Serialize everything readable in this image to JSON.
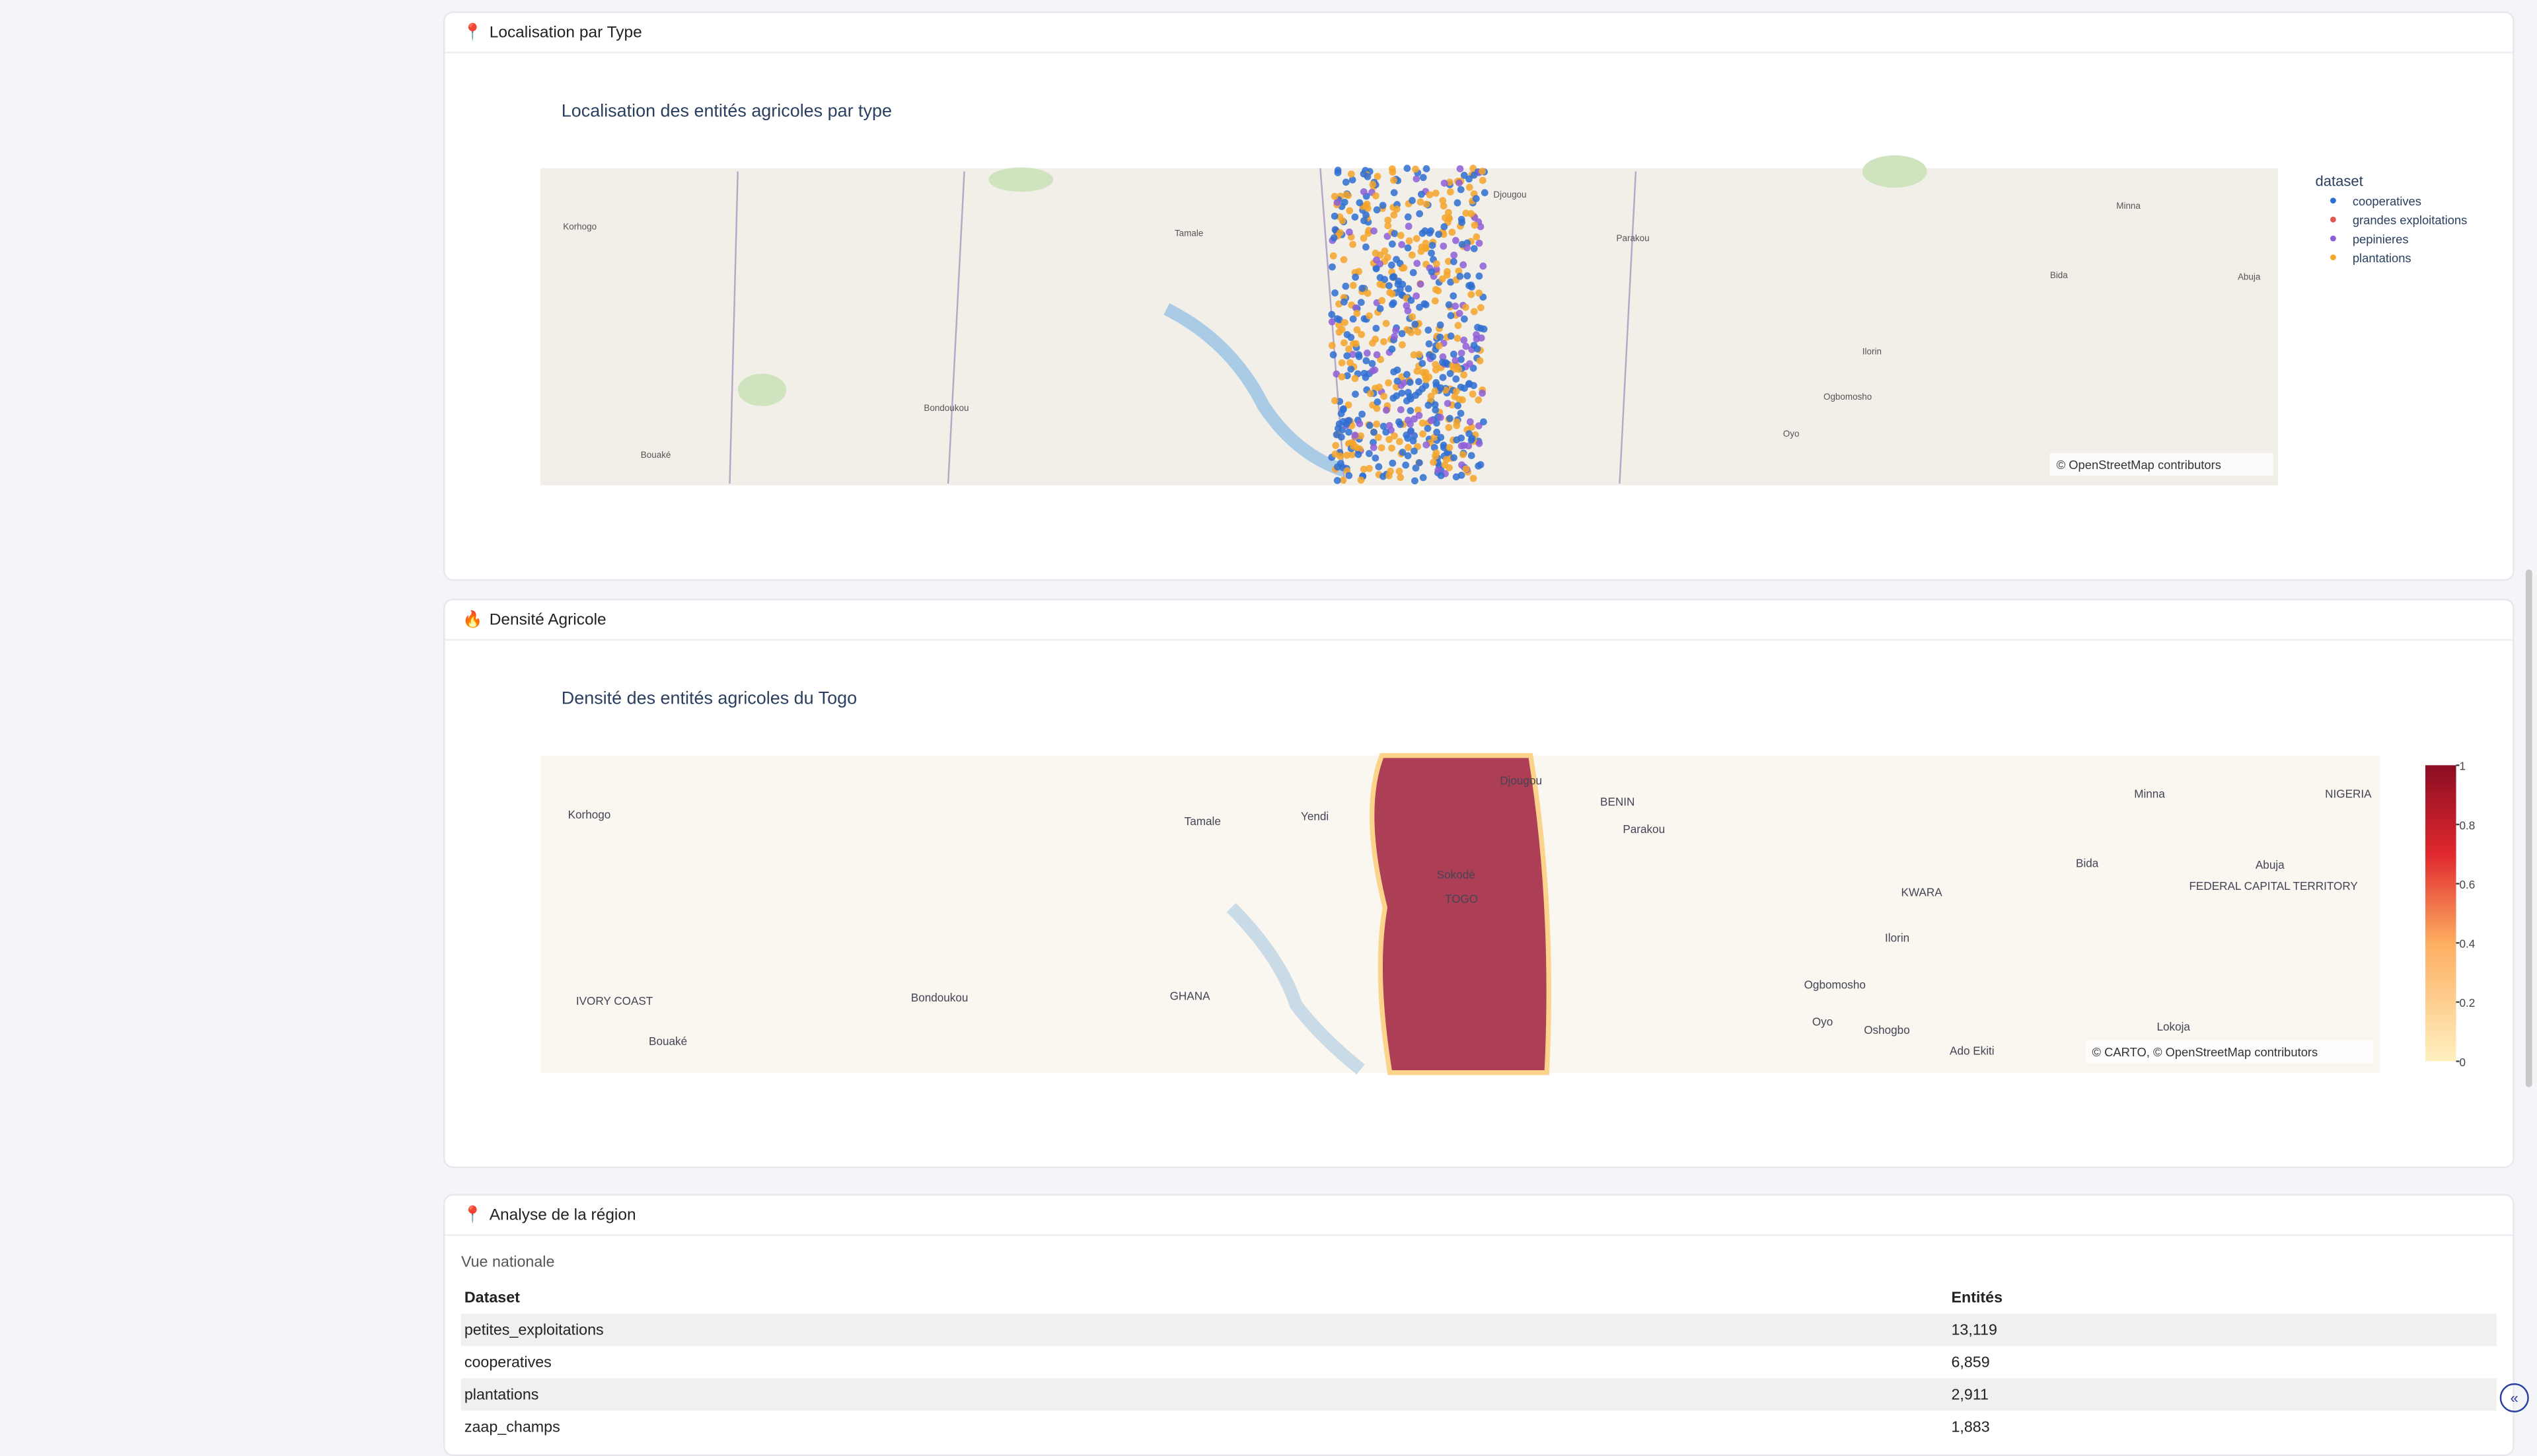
{
  "sections": [
    {
      "icon": "📍",
      "title": "Localisation par Type"
    },
    {
      "icon": "🔥",
      "title": "Densité Agricole"
    },
    {
      "icon": "📍",
      "title": "Analyse de la région"
    }
  ],
  "map1": {
    "title": "Localisation des entités agricoles par type",
    "legend_title": "dataset",
    "legend": [
      {
        "name": "cooperatives",
        "color": "#2f6fd1"
      },
      {
        "name": "grandes exploitations",
        "color": "#e0574f"
      },
      {
        "name": "pepinieres",
        "color": "#8e5ed6"
      },
      {
        "name": "plantations",
        "color": "#f5a52a"
      }
    ],
    "attribution": "© OpenStreetMap contributors",
    "places": [
      "Korhogo",
      "Tamale",
      "Bondoukou",
      "Bouaké",
      "Djougou",
      "Parakou",
      "Ilorin",
      "Ogbomosho",
      "Oyo",
      "Minna",
      "Abuja",
      "Bida"
    ]
  },
  "map2": {
    "title": "Densité des entités agricoles du Togo",
    "attribution": "© CARTO, © OpenStreetMap contributors",
    "colorbar_ticks": [
      0,
      0.2,
      0.4,
      0.6,
      0.8,
      1
    ],
    "places": [
      "Korhogo",
      "Tamale",
      "Yendi",
      "Djougou",
      "BENIN",
      "Parakou",
      "Minna",
      "NIGERIA",
      "Bida",
      "Abuja",
      "KWARA",
      "FEDERAL CAPITAL TERRITORY",
      "Ilorin",
      "IVORY COAST",
      "Bondoukou",
      "GHANA",
      "Ogbomosho",
      "Oyo",
      "Oshogbo",
      "Lokoja",
      "Ado Ekiti",
      "Bouaké",
      "Sokodé",
      "TOGO"
    ]
  },
  "region": {
    "subtitle": "Vue nationale",
    "table": {
      "header": [
        "Dataset",
        "Entités"
      ],
      "rows": [
        [
          "petites_exploitations",
          "13,119"
        ],
        [
          "cooperatives",
          "6,859"
        ],
        [
          "plantations",
          "2,911"
        ],
        [
          "zaap_champs",
          "1,883"
        ]
      ]
    }
  }
}
